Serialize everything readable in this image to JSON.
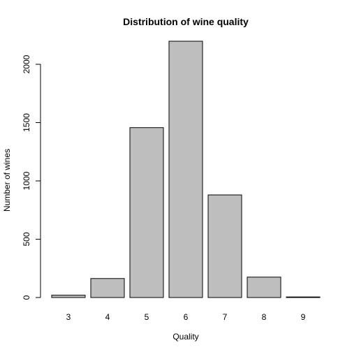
{
  "chart_data": {
    "type": "bar",
    "title": "Distribution of wine quality",
    "xlabel": "Quality",
    "ylabel": "Number of wines",
    "categories": [
      "3",
      "4",
      "5",
      "6",
      "7",
      "8",
      "9"
    ],
    "values": [
      20,
      163,
      1457,
      2198,
      880,
      175,
      5
    ],
    "ylim": [
      0,
      2198
    ],
    "yticks": [
      0,
      500,
      1000,
      1500,
      2000
    ],
    "ytick_labels": [
      "0",
      "500",
      "1000",
      "1500",
      "2000"
    ],
    "bar_color": "#bebebe",
    "bar_border_color": "#000000",
    "grid": false
  }
}
